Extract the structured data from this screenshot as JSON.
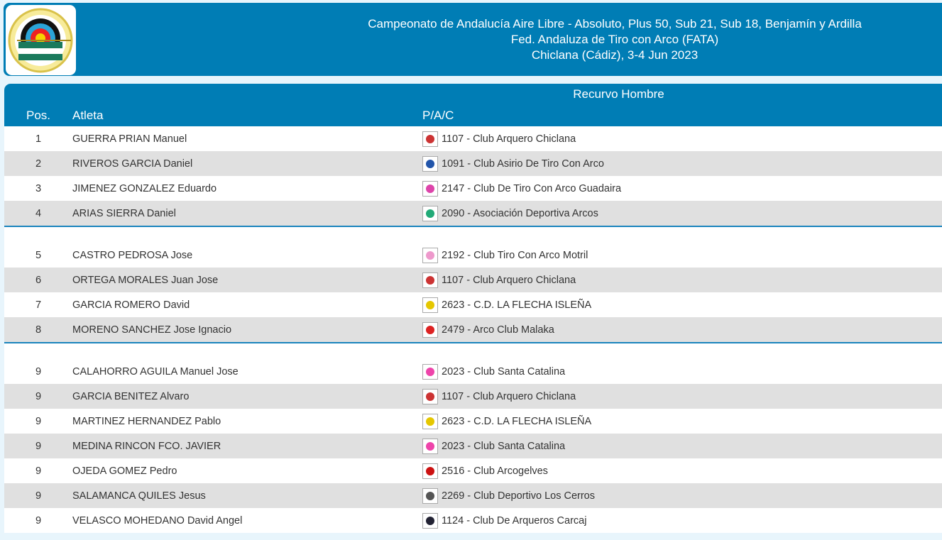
{
  "header": {
    "lines": [
      "Campeonato de Andalucía Aire Libre - Absoluto, Plus 50, Sub 21, Sub 18, Benjamín y Ardilla",
      "Fed. Andaluza de Tiro con Arco (FATA)",
      "Chiclana (Cádiz), 3-4 Jun 2023"
    ],
    "logo_text": "Federación Andaluza de Tiro con Arco"
  },
  "table": {
    "category": "Recurvo Hombre",
    "columns": {
      "pos": "Pos.",
      "athlete": "Atleta",
      "club": "P/A/C"
    },
    "groups": [
      [
        {
          "pos": "1",
          "name": "GUERRA PRIAN Manuel",
          "club": "1107 - Club Arquero Chiclana",
          "color": "#c33"
        },
        {
          "pos": "2",
          "name": "RIVEROS GARCIA Daniel",
          "club": "1091 - Club Asirio De Tiro Con Arco",
          "color": "#2255aa"
        },
        {
          "pos": "3",
          "name": "JIMENEZ GONZALEZ Eduardo",
          "club": "2147 - Club De Tiro Con Arco Guadaira",
          "color": "#d4a"
        },
        {
          "pos": "4",
          "name": "ARIAS SIERRA Daniel",
          "club": "2090 - Asociación Deportiva Arcos",
          "color": "#2a7"
        }
      ],
      [
        {
          "pos": "5",
          "name": "CASTRO PEDROSA Jose",
          "club": "2192 - Club Tiro Con Arco Motril",
          "color": "#e9c"
        },
        {
          "pos": "6",
          "name": "ORTEGA MORALES Juan Jose",
          "club": "1107 - Club Arquero Chiclana",
          "color": "#c33"
        },
        {
          "pos": "7",
          "name": "GARCIA ROMERO David",
          "club": "2623 - C.D. LA FLECHA ISLEÑA",
          "color": "#e5c700"
        },
        {
          "pos": "8",
          "name": "MORENO SANCHEZ Jose Ignacio",
          "club": "2479 - Arco Club Malaka",
          "color": "#d22"
        }
      ],
      [
        {
          "pos": "9",
          "name": "CALAHORRO AGUILA Manuel Jose",
          "club": "2023 - Club Santa Catalina",
          "color": "#e4a"
        },
        {
          "pos": "9",
          "name": "GARCIA BENITEZ Alvaro",
          "club": "1107 - Club Arquero Chiclana",
          "color": "#c33"
        },
        {
          "pos": "9",
          "name": "MARTINEZ HERNANDEZ Pablo",
          "club": "2623 - C.D. LA FLECHA ISLEÑA",
          "color": "#e5c700"
        },
        {
          "pos": "9",
          "name": "MEDINA RINCON FCO. JAVIER",
          "club": "2023 - Club Santa Catalina",
          "color": "#e4a"
        },
        {
          "pos": "9",
          "name": "OJEDA GOMEZ Pedro",
          "club": "2516 - Club Arcogelves",
          "color": "#c11"
        },
        {
          "pos": "9",
          "name": "SALAMANCA QUILES Jesus",
          "club": "2269 - Club Deportivo Los Cerros",
          "color": "#555"
        },
        {
          "pos": "9",
          "name": "VELASCO MOHEDANO David Angel",
          "club": "1124 - Club De Arqueros Carcaj",
          "color": "#223"
        }
      ]
    ]
  }
}
